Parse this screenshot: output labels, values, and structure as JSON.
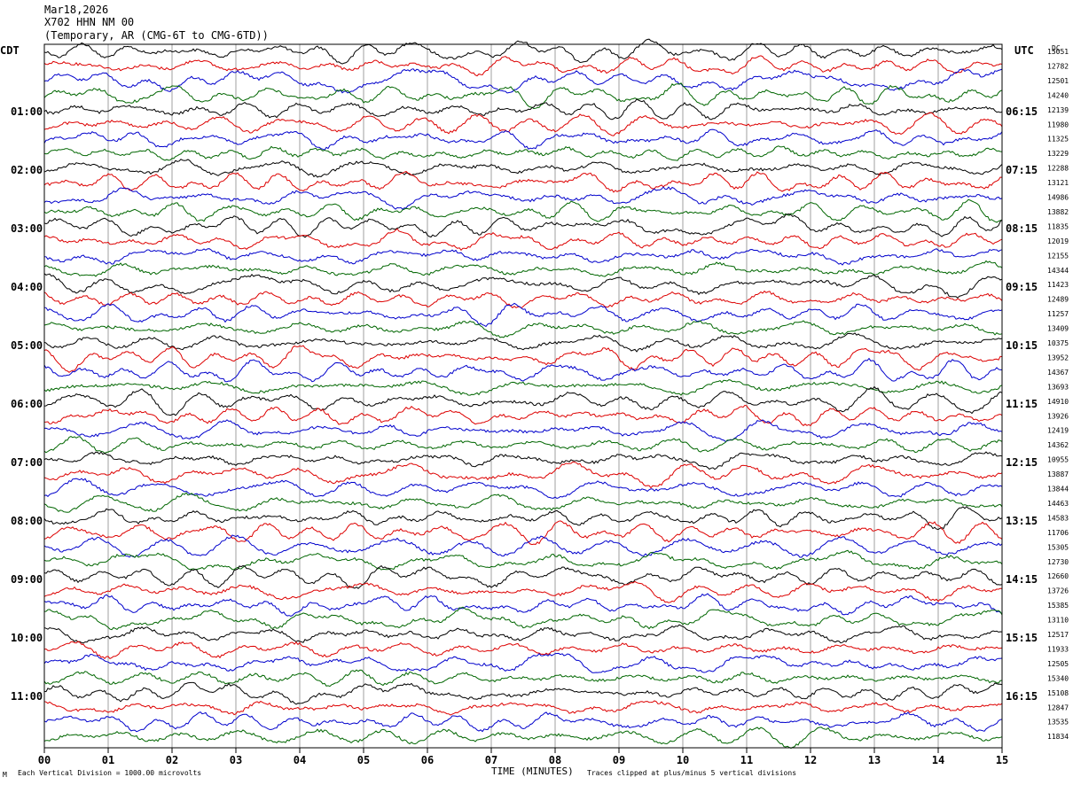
{
  "header": {
    "date": "Mar18,2026",
    "station": "X702 HHN NM 00",
    "network": "(Temporary, AR (CMG-6T to CMG-6TD))"
  },
  "labels": {
    "left_zone": "CDT",
    "right_zone": "UTC",
    "dc": "DC",
    "xlabel": "TIME (MINUTES)",
    "vertical_division": "Each Vertical Division = 1000.00 microvolts",
    "clip_note": "Traces clipped at plus/minus 5 vertical divisions",
    "corner_mark": "M"
  },
  "chart_data": {
    "type": "line",
    "x_ticks": [
      "00",
      "01",
      "02",
      "03",
      "04",
      "05",
      "06",
      "07",
      "08",
      "09",
      "10",
      "11",
      "12",
      "13",
      "14",
      "15"
    ],
    "xlim": [
      0,
      15
    ],
    "grid": "vertical lines at each minute",
    "trace_colors": [
      "#000000",
      "#dd0000",
      "#0000cc",
      "#006600"
    ],
    "left_hour_labels": [
      "01:00",
      "02:00",
      "03:00",
      "04:00",
      "05:00",
      "06:00",
      "07:00",
      "08:00",
      "09:00",
      "10:00",
      "11:00"
    ],
    "right_hour_labels": [
      "06:15",
      "07:15",
      "08:15",
      "09:15",
      "10:15",
      "11:15",
      "12:15",
      "13:15",
      "14:15",
      "15:15",
      "16:15"
    ],
    "dc_values": [
      15051,
      12782,
      12501,
      14240,
      12139,
      11980,
      11325,
      13229,
      12288,
      13121,
      14986,
      13882,
      11835,
      12019,
      12155,
      14344,
      11423,
      12489,
      11257,
      13409,
      10375,
      13952,
      14367,
      13693,
      14910,
      13926,
      12419,
      14362,
      10955,
      13887,
      13844,
      14463,
      14583,
      11706,
      15305,
      12730,
      12660,
      13726,
      15385,
      13110,
      12517,
      11933,
      12505,
      15340,
      15108,
      12847,
      13535,
      11834
    ]
  }
}
